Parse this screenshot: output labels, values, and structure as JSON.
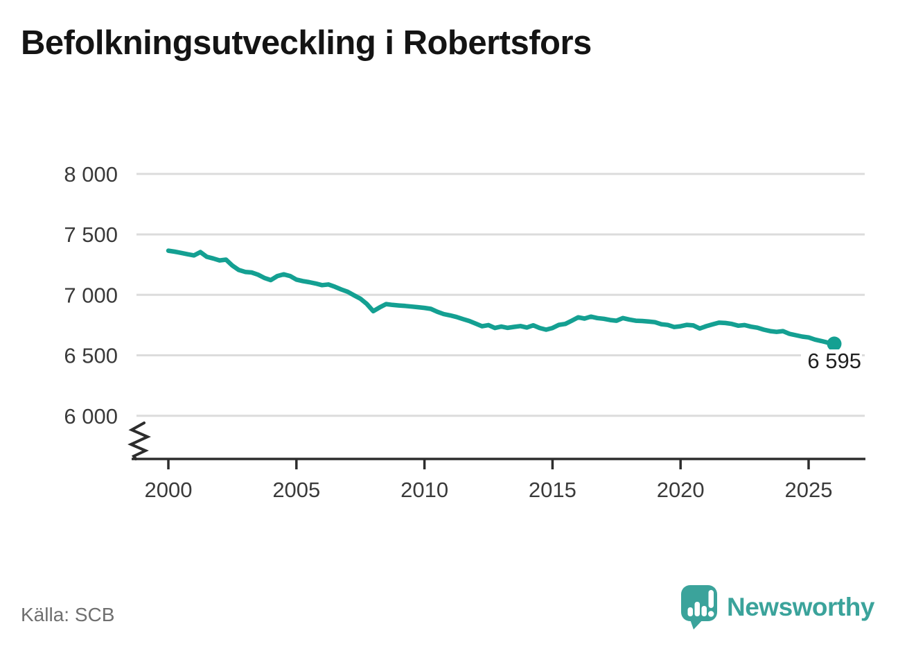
{
  "header": {
    "title": "Befolkningsutveckling i Robertsfors"
  },
  "footer": {
    "source_label": "Källa: SCB",
    "brand_name": "Newsworthy"
  },
  "colors": {
    "line": "#14a092",
    "grid": "#dcdcdc",
    "axis": "#2d2d2d",
    "title_text": "#141414",
    "muted_text": "#6f6f6f",
    "brand_teal": "#3ba39b"
  },
  "chart_data": {
    "type": "line",
    "title": "Befolkningsutveckling i Robertsfors",
    "source": "Källa: SCB",
    "xlabel": "",
    "ylabel": "",
    "grid": "horizontal",
    "legend": "none",
    "y_axis_break": true,
    "ylim": [
      5780,
      8150
    ],
    "xlim": [
      1998.6,
      2027.0
    ],
    "y_ticks": [
      "8 000",
      "7 500",
      "7 000",
      "6 500",
      "6 000"
    ],
    "y_tick_values": [
      8000,
      7500,
      7000,
      6500,
      6000
    ],
    "x_ticks": [
      "2000",
      "2005",
      "2010",
      "2015",
      "2020",
      "2025"
    ],
    "x_tick_values": [
      2000,
      2005,
      2010,
      2015,
      2020,
      2025
    ],
    "end_label": "6 595",
    "end_value": 6595,
    "series": [
      {
        "name": "Befolkning",
        "points": [
          [
            2000.0,
            7365
          ],
          [
            2000.25,
            7357
          ],
          [
            2000.5,
            7347
          ],
          [
            2000.75,
            7336
          ],
          [
            2001.0,
            7326
          ],
          [
            2001.25,
            7354
          ],
          [
            2001.5,
            7315
          ],
          [
            2001.75,
            7301
          ],
          [
            2002.0,
            7285
          ],
          [
            2002.25,
            7291
          ],
          [
            2002.5,
            7242
          ],
          [
            2002.75,
            7206
          ],
          [
            2003.0,
            7190
          ],
          [
            2003.25,
            7185
          ],
          [
            2003.5,
            7167
          ],
          [
            2003.75,
            7140
          ],
          [
            2004.0,
            7122
          ],
          [
            2004.25,
            7155
          ],
          [
            2004.5,
            7170
          ],
          [
            2004.75,
            7156
          ],
          [
            2005.0,
            7126
          ],
          [
            2005.25,
            7114
          ],
          [
            2005.5,
            7105
          ],
          [
            2005.75,
            7094
          ],
          [
            2006.0,
            7080
          ],
          [
            2006.25,
            7086
          ],
          [
            2006.5,
            7067
          ],
          [
            2006.75,
            7045
          ],
          [
            2007.0,
            7026
          ],
          [
            2007.25,
            6996
          ],
          [
            2007.5,
            6968
          ],
          [
            2007.75,
            6925
          ],
          [
            2008.0,
            6865
          ],
          [
            2008.25,
            6896
          ],
          [
            2008.5,
            6924
          ],
          [
            2008.75,
            6917
          ],
          [
            2009.0,
            6912
          ],
          [
            2009.25,
            6908
          ],
          [
            2009.5,
            6903
          ],
          [
            2009.75,
            6898
          ],
          [
            2010.0,
            6892
          ],
          [
            2010.25,
            6884
          ],
          [
            2010.5,
            6860
          ],
          [
            2010.75,
            6841
          ],
          [
            2011.0,
            6830
          ],
          [
            2011.25,
            6817
          ],
          [
            2011.5,
            6800
          ],
          [
            2011.75,
            6784
          ],
          [
            2012.0,
            6762
          ],
          [
            2012.25,
            6740
          ],
          [
            2012.5,
            6750
          ],
          [
            2012.75,
            6726
          ],
          [
            2013.0,
            6738
          ],
          [
            2013.25,
            6727
          ],
          [
            2013.5,
            6735
          ],
          [
            2013.75,
            6742
          ],
          [
            2014.0,
            6730
          ],
          [
            2014.25,
            6748
          ],
          [
            2014.5,
            6726
          ],
          [
            2014.75,
            6712
          ],
          [
            2015.0,
            6726
          ],
          [
            2015.25,
            6752
          ],
          [
            2015.5,
            6760
          ],
          [
            2015.75,
            6786
          ],
          [
            2016.0,
            6814
          ],
          [
            2016.25,
            6804
          ],
          [
            2016.5,
            6820
          ],
          [
            2016.75,
            6808
          ],
          [
            2017.0,
            6802
          ],
          [
            2017.25,
            6792
          ],
          [
            2017.5,
            6786
          ],
          [
            2017.75,
            6808
          ],
          [
            2018.0,
            6796
          ],
          [
            2018.25,
            6786
          ],
          [
            2018.5,
            6784
          ],
          [
            2018.75,
            6779
          ],
          [
            2019.0,
            6774
          ],
          [
            2019.25,
            6757
          ],
          [
            2019.5,
            6751
          ],
          [
            2019.75,
            6734
          ],
          [
            2020.0,
            6740
          ],
          [
            2020.25,
            6752
          ],
          [
            2020.5,
            6747
          ],
          [
            2020.75,
            6722
          ],
          [
            2021.0,
            6741
          ],
          [
            2021.25,
            6756
          ],
          [
            2021.5,
            6770
          ],
          [
            2021.75,
            6767
          ],
          [
            2022.0,
            6760
          ],
          [
            2022.25,
            6745
          ],
          [
            2022.5,
            6750
          ],
          [
            2022.75,
            6737
          ],
          [
            2023.0,
            6728
          ],
          [
            2023.25,
            6712
          ],
          [
            2023.5,
            6700
          ],
          [
            2023.75,
            6694
          ],
          [
            2024.0,
            6700
          ],
          [
            2024.25,
            6678
          ],
          [
            2024.5,
            6666
          ],
          [
            2024.75,
            6655
          ],
          [
            2025.0,
            6648
          ],
          [
            2025.25,
            6630
          ],
          [
            2025.5,
            6618
          ],
          [
            2025.75,
            6605
          ],
          [
            2026.0,
            6595
          ]
        ]
      }
    ]
  }
}
